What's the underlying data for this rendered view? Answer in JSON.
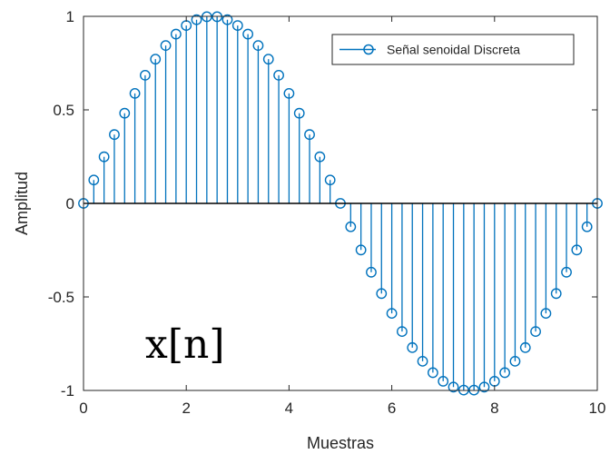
{
  "chart_data": {
    "type": "stem",
    "xlabel": "Muestras",
    "ylabel": "Amplitud",
    "xlim": [
      0,
      10
    ],
    "ylim": [
      -1,
      1
    ],
    "x_ticks": [
      "0",
      "2",
      "4",
      "6",
      "8",
      "10"
    ],
    "y_ticks": [
      "-1",
      "-0.5",
      "0",
      "0.5",
      "1"
    ],
    "legend": {
      "location": "top-right",
      "entries": [
        "Señal senoidal Discreta"
      ]
    },
    "annotation": "x[n]",
    "colors": {
      "series": "#0072BD",
      "axes": "#262626"
    },
    "series": [
      {
        "name": "Señal senoidal Discreta",
        "function": "sin(2*pi*x/10)",
        "x": [
          0,
          0.2,
          0.4,
          0.6,
          0.8,
          1.0,
          1.2,
          1.4,
          1.6,
          1.8,
          2.0,
          2.2,
          2.4,
          2.6,
          2.8,
          3.0,
          3.2,
          3.4,
          3.6,
          3.8,
          4.0,
          4.2,
          4.4,
          4.6,
          4.8,
          5.0,
          5.2,
          5.4,
          5.6,
          5.8,
          6.0,
          6.2,
          6.4,
          6.6,
          6.8,
          7.0,
          7.2,
          7.4,
          7.6,
          7.8,
          8.0,
          8.2,
          8.4,
          8.6,
          8.8,
          9.0,
          9.2,
          9.4,
          9.6,
          9.8,
          10.0
        ],
        "y": [
          0.0,
          0.125,
          0.249,
          0.368,
          0.482,
          0.588,
          0.685,
          0.771,
          0.844,
          0.905,
          0.951,
          0.982,
          0.998,
          0.998,
          0.982,
          0.951,
          0.905,
          0.844,
          0.771,
          0.685,
          0.588,
          0.482,
          0.368,
          0.249,
          0.125,
          0.0,
          -0.125,
          -0.249,
          -0.368,
          -0.482,
          -0.588,
          -0.685,
          -0.771,
          -0.844,
          -0.905,
          -0.951,
          -0.982,
          -0.998,
          -0.998,
          -0.982,
          -0.951,
          -0.905,
          -0.844,
          -0.771,
          -0.685,
          -0.588,
          -0.482,
          -0.368,
          -0.249,
          -0.125,
          0.0
        ]
      }
    ]
  }
}
